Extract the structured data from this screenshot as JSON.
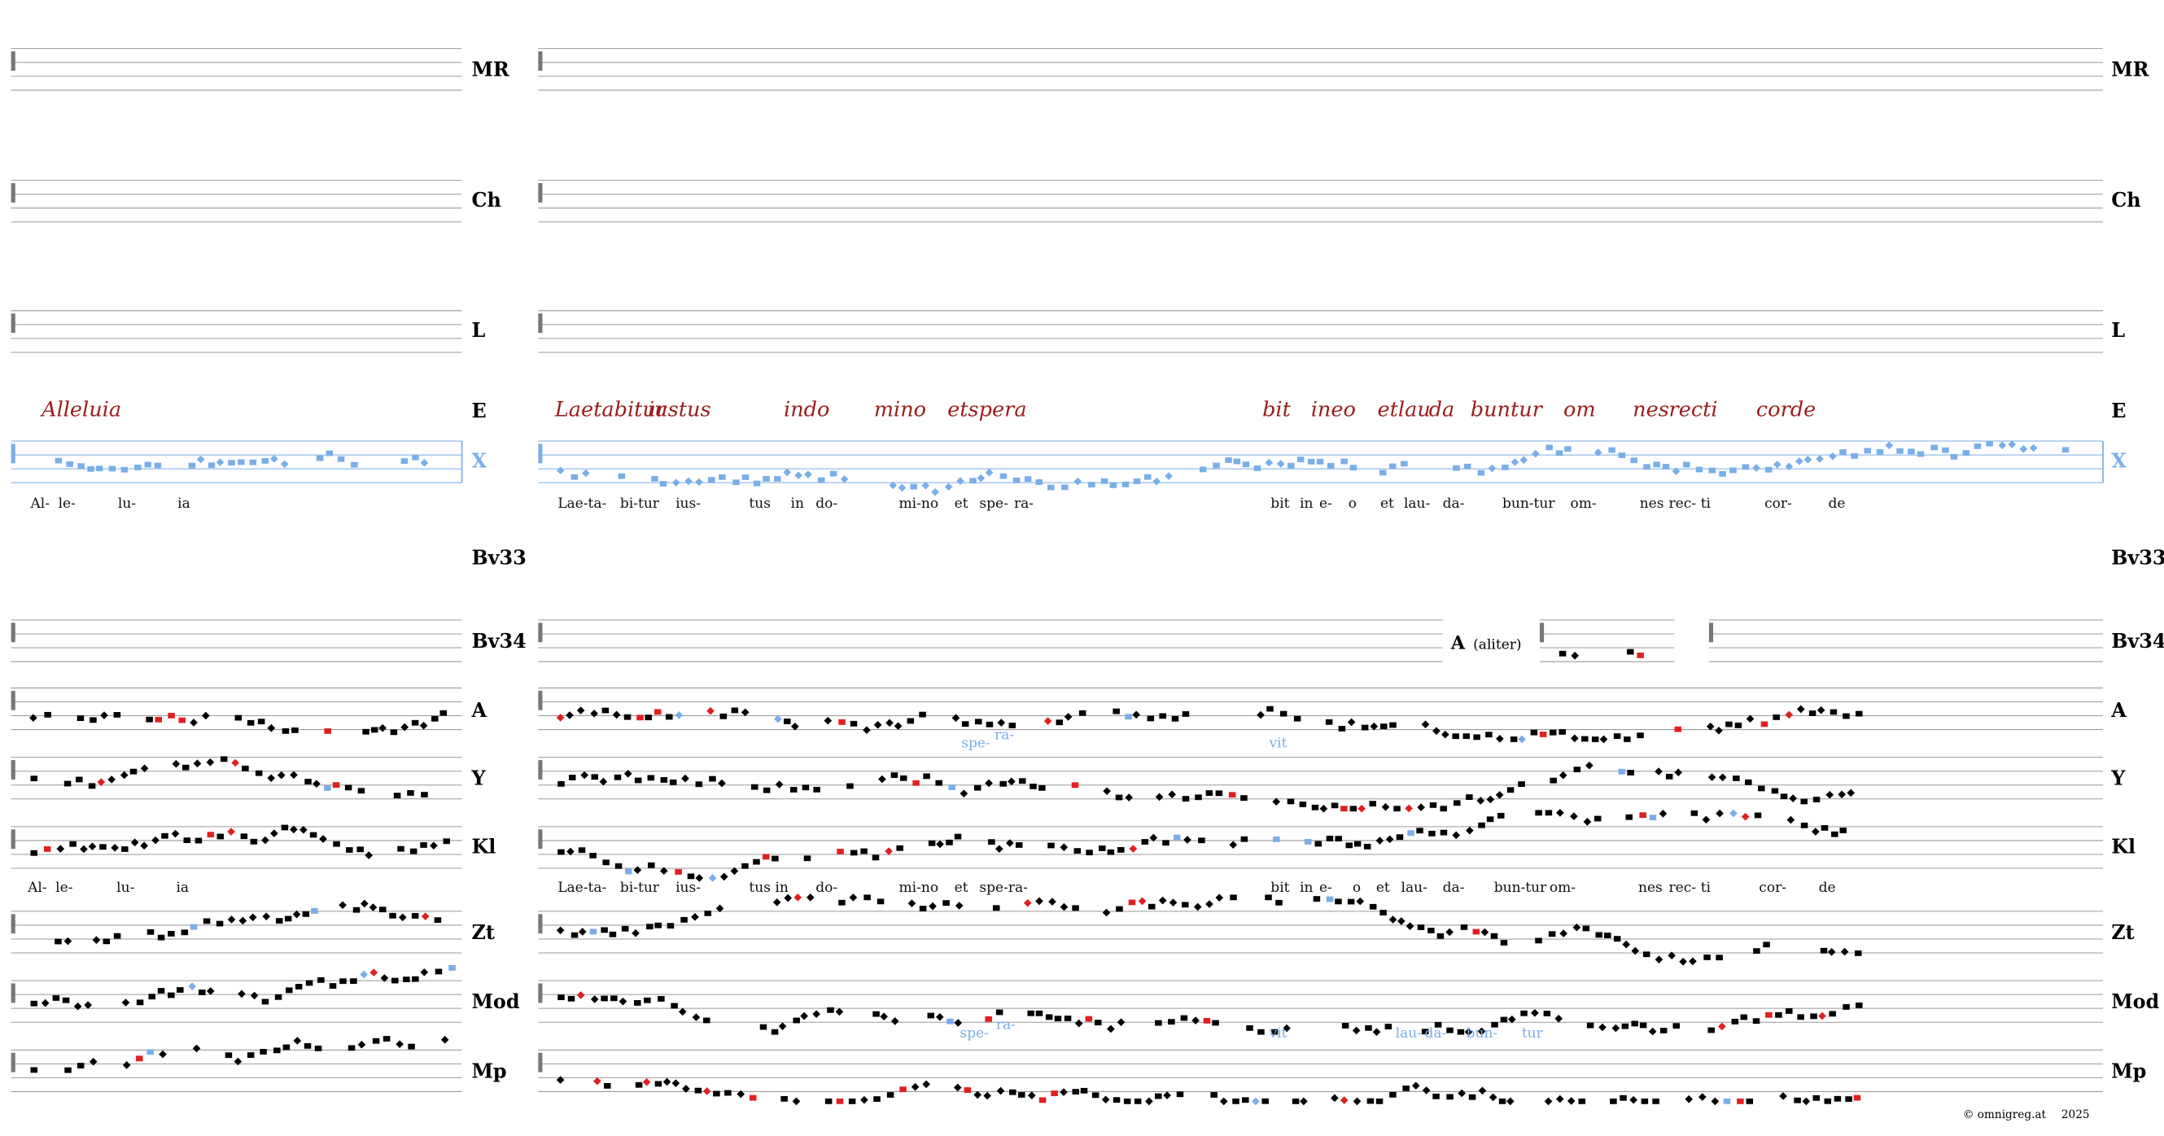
{
  "staff_labels": [
    "MR",
    "Ch",
    "L",
    "E",
    "X",
    "Bv33",
    "Bv34",
    "A",
    "Y",
    "Kl",
    "Zt",
    "Mod",
    "Mp"
  ],
  "manuscript": {
    "left": [
      "Alleluia"
    ],
    "right": [
      "Laetabitur",
      "iustus",
      "indo",
      "mino",
      "etspera",
      "bit",
      "ineo",
      "etlau",
      "da",
      "buntur",
      "om",
      "nes",
      "recti",
      "corde"
    ]
  },
  "lyrics_X": {
    "left": [
      "Al-",
      "le-",
      "lu-",
      "ia"
    ],
    "right": [
      "Lae-ta-",
      "bi-tur",
      "ius-",
      "tus",
      "in",
      "do-",
      "mi-no",
      "et",
      "spe-",
      "ra-",
      "bit",
      "in",
      "e-",
      "o",
      "et",
      "lau-",
      "da-",
      "bun-tur",
      "om-",
      "nes",
      "rec-",
      "ti",
      "cor-",
      "de"
    ]
  },
  "lyrics_Kl": {
    "left": [
      "Al-",
      "le-",
      "lu-",
      "ia"
    ],
    "right": [
      "Lae-ta-",
      "bi-tur",
      "ius-",
      "tus in",
      "do-",
      "mi-no",
      "et",
      "spe-ra-",
      "bit",
      "in",
      "e-",
      "o",
      "et",
      "lau-",
      "da-",
      "bun-tur",
      "om-",
      "nes",
      "rec-",
      "ti",
      "cor-",
      "de"
    ]
  },
  "variants_A": [
    "spe-",
    "ra-",
    "vit"
  ],
  "variants_Mod": [
    "spe-",
    "ra-",
    "vit",
    "lau-",
    "da-",
    "bun-",
    "tur"
  ],
  "aliter": {
    "letter": "A",
    "note": "(aliter)"
  },
  "footer": {
    "site": "© omnigreg.at",
    "year": "2025"
  }
}
